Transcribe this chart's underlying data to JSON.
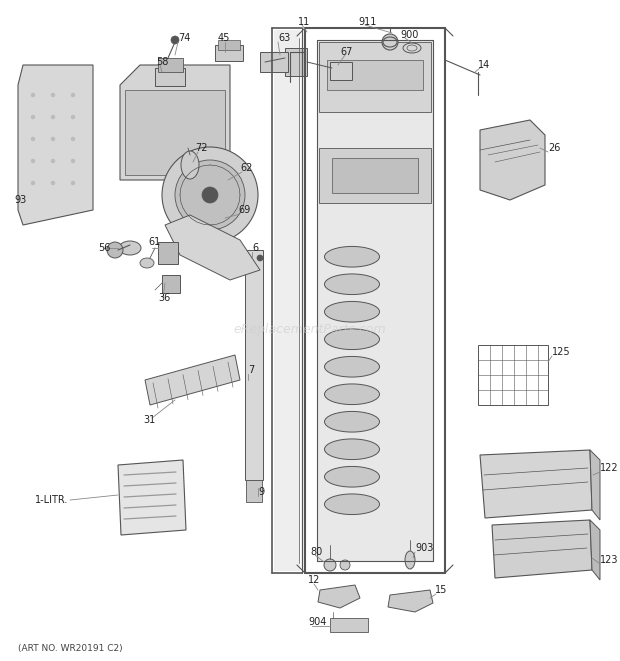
{
  "background_color": "#ffffff",
  "watermark": "eReplacementParts.com",
  "footer": "(ART NO. WR20191 C2)",
  "fig_width": 6.2,
  "fig_height": 6.61,
  "dpi": 100,
  "line_color": "#555555",
  "label_color": "#222222",
  "label_fontsize": 7.0
}
